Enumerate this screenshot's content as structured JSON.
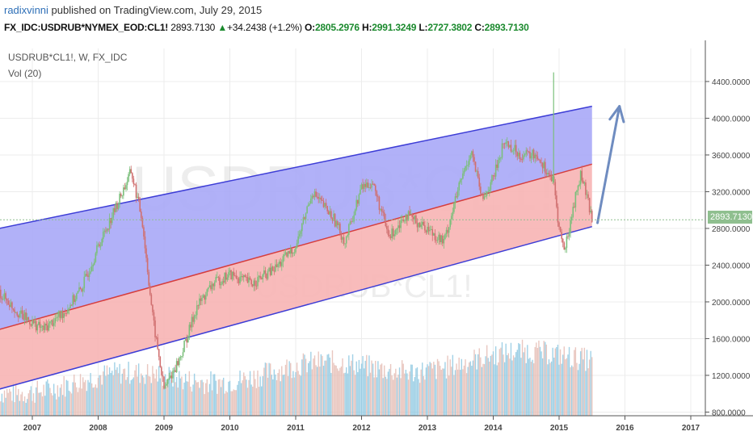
{
  "header": {
    "author": "radixvinni",
    "published_text": "published on TradingView.com, July 29, 2015",
    "symbol": "FX_IDC:USDRUB*NYMEX_EOD:CL1!",
    "last": "2893.7130",
    "change": "+34.2438 (+1.2%)",
    "o_label": "O:",
    "o_value": "2805.2976",
    "h_label": "H:",
    "h_value": "2991.3249",
    "l_label": "L:",
    "l_value": "2727.3802",
    "c_label": "C:",
    "c_value": "2893.7130"
  },
  "legend": {
    "series_label": "USDRUB*CL1!, W, FX_IDC",
    "volume_label": "Vol (20)"
  },
  "watermark": {
    "big": "USDRUB*CL1!",
    "small": "USDRUB*CL1!"
  },
  "price_tag": "2893.7130",
  "colors": {
    "upper_band": "#a9a9f7",
    "lower_band": "#f7b4b4",
    "channel_line": "#3d3dd6",
    "mid_line": "#d63d3d",
    "candle_up": "#7bbf7b",
    "candle_down": "#d07070",
    "volume": "#8ac6e0",
    "arrow": "#6f8cc0",
    "price_tag_bg": "#8fbf8f"
  },
  "chart_data": {
    "type": "candlestick",
    "title": "USDRUB*CL1!, W, FX_IDC",
    "x_ticks": [
      "2007",
      "2008",
      "2009",
      "2010",
      "2011",
      "2012",
      "2013",
      "2014",
      "2015",
      "2016",
      "2017"
    ],
    "y_ticks": [
      "4400.0000",
      "4000.0000",
      "3600.0000",
      "3200.0000",
      "2800.0000",
      "2400.0000",
      "2000.0000",
      "1600.0000",
      "1200.0000",
      "800.0000"
    ],
    "ylim": [
      760,
      4760
    ],
    "price_path": [
      [
        "2006-07",
        2100
      ],
      [
        "2006-11",
        1850
      ],
      [
        "2007-03",
        1700
      ],
      [
        "2007-07",
        1900
      ],
      [
        "2007-10",
        2150
      ],
      [
        "2008-01",
        2600
      ],
      [
        "2008-04",
        3000
      ],
      [
        "2008-07",
        3420
      ],
      [
        "2008-09",
        2900
      ],
      [
        "2008-11",
        1800
      ],
      [
        "2009-01",
        1050
      ],
      [
        "2009-04",
        1400
      ],
      [
        "2009-07",
        1950
      ],
      [
        "2009-10",
        2200
      ],
      [
        "2010-01",
        2300
      ],
      [
        "2010-05",
        2200
      ],
      [
        "2010-09",
        2350
      ],
      [
        "2011-01",
        2600
      ],
      [
        "2011-04",
        3200
      ],
      [
        "2011-08",
        2900
      ],
      [
        "2011-10",
        2650
      ],
      [
        "2012-01",
        3250
      ],
      [
        "2012-03",
        3300
      ],
      [
        "2012-06",
        2700
      ],
      [
        "2012-09",
        2950
      ],
      [
        "2013-01",
        2800
      ],
      [
        "2013-04",
        2650
      ],
      [
        "2013-07",
        3300
      ],
      [
        "2013-09",
        3650
      ],
      [
        "2013-11",
        3100
      ],
      [
        "2014-01",
        3350
      ],
      [
        "2014-03",
        3750
      ],
      [
        "2014-06",
        3600
      ],
      [
        "2014-09",
        3600
      ],
      [
        "2014-12",
        3300
      ],
      [
        "2015-01",
        2800
      ],
      [
        "2015-02",
        2550
      ],
      [
        "2015-04",
        3150
      ],
      [
        "2015-05",
        3400
      ],
      [
        "2015-07",
        2900
      ]
    ],
    "channel": {
      "upper": [
        [
          "2006-07",
          2800
        ],
        [
          "2015-07",
          4130
        ]
      ],
      "middle": [
        [
          "2006-07",
          1700
        ],
        [
          "2015-07",
          3500
        ]
      ],
      "lower": [
        [
          "2006-07",
          1050
        ],
        [
          "2015-07",
          2820
        ]
      ]
    },
    "projection_arrow": [
      [
        "2015-08",
        2860
      ],
      [
        "2015-12",
        4130
      ]
    ],
    "spike": {
      "x": "2014-12",
      "high": 4500
    },
    "volume_band": {
      "start": 1100,
      "mid": 1400,
      "end": 1450
    },
    "grid": true,
    "axis_position": "right"
  }
}
